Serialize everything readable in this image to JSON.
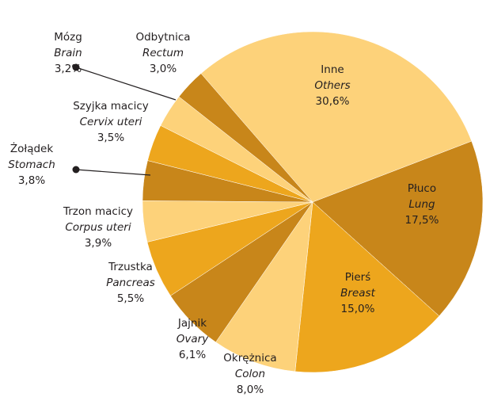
{
  "chart_data": {
    "type": "pie",
    "categories": [
      "Inne",
      "Płuco",
      "Pierś",
      "Okrężnica",
      "Jajnik",
      "Trzustka",
      "Trzon macicy",
      "Żołądek",
      "Szyjka macicy",
      "Mózg",
      "Odbytnica"
    ],
    "categories_en": [
      "Others",
      "Lung",
      "Breast",
      "Colon",
      "Ovary",
      "Pancreas",
      "Corpus uteri",
      "Stomach",
      "Cervix uteri",
      "Brain",
      "Rectum"
    ],
    "values": [
      30.6,
      17.5,
      15.0,
      8.0,
      6.1,
      5.5,
      3.9,
      3.8,
      3.5,
      3.2,
      3.0
    ],
    "value_labels": [
      "30,6%",
      "17,5%",
      "15,0%",
      "8,0%",
      "6,1%",
      "5,5%",
      "3,9%",
      "3,8%",
      "3,5%",
      "3,2%",
      "3,0%"
    ],
    "colors": [
      "#fdd27a",
      "#c8861a",
      "#eda61d",
      "#fdd27a",
      "#c8861a",
      "#eda61d",
      "#fdd27a",
      "#c8861a",
      "#eda61d",
      "#fdd27a",
      "#c8861a"
    ]
  }
}
